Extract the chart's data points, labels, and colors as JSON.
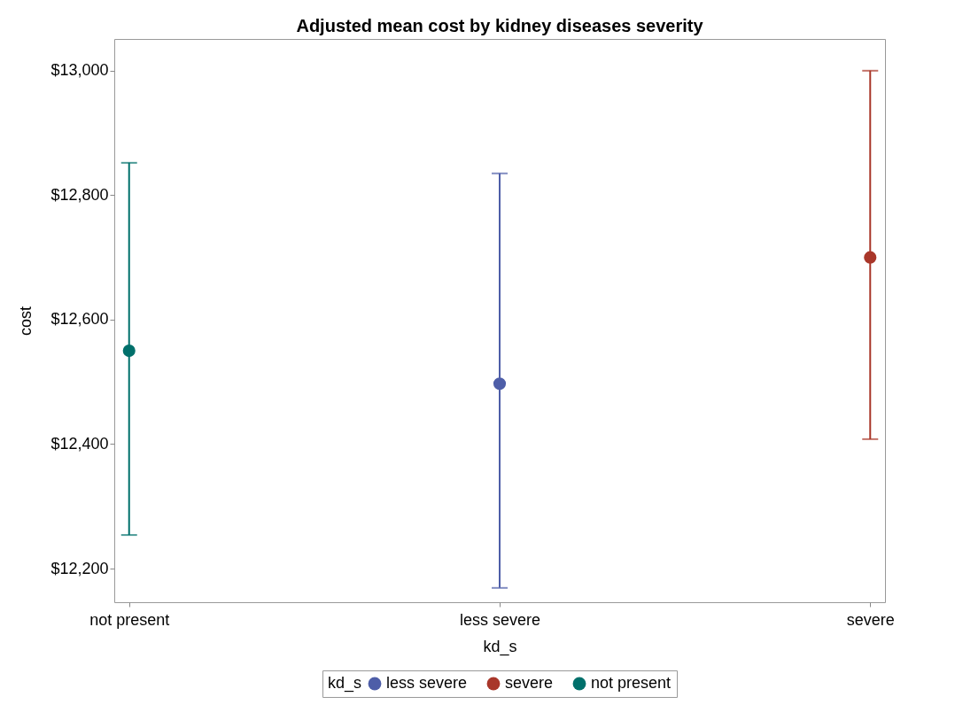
{
  "chart_data": {
    "type": "scatter",
    "title": "Adjusted mean cost by kidney diseases severity",
    "xlabel": "kd_s",
    "ylabel": "cost",
    "legend_title": "kd_s",
    "categories": [
      "not present",
      "less severe",
      "severe"
    ],
    "series": [
      {
        "name": "less severe",
        "color": "#4e5ea8",
        "values": [
          null,
          12497,
          null
        ],
        "errors": [
          null,
          [
            12169,
            12835
          ],
          null
        ]
      },
      {
        "name": "severe",
        "color": "#a9372a",
        "values": [
          null,
          null,
          12700
        ],
        "errors": [
          null,
          null,
          [
            12408,
            13000
          ]
        ]
      },
      {
        "name": "not present",
        "color": "#00706b",
        "values": [
          12550,
          null,
          null
        ],
        "errors": [
          [
            12254,
            12852
          ],
          null,
          null
        ]
      }
    ],
    "ylim": [
      12146,
      13051
    ],
    "yticks": [
      {
        "value": 12200,
        "label": "$12,200"
      },
      {
        "value": 12400,
        "label": "$12,400"
      },
      {
        "value": 12600,
        "label": "$12,600"
      },
      {
        "value": 12800,
        "label": "$12,800"
      },
      {
        "value": 13000,
        "label": "$13,000"
      }
    ],
    "grid": false,
    "legend": "bottom",
    "marker": "circle"
  }
}
